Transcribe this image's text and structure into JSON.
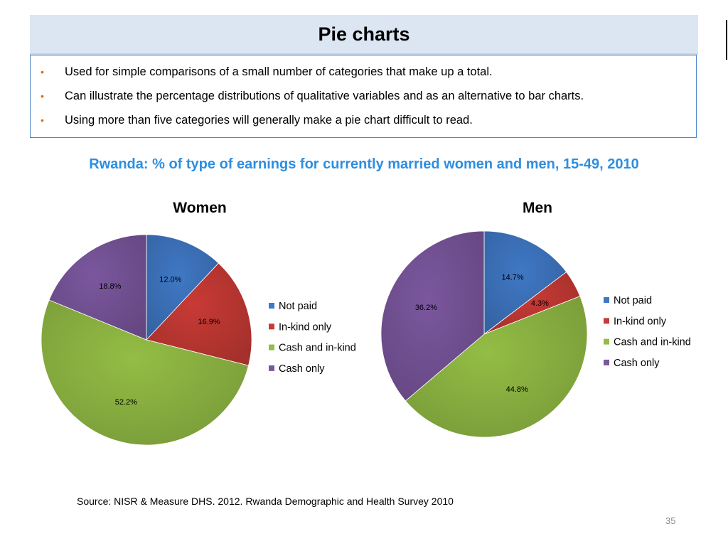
{
  "slide": {
    "title": "Pie charts",
    "bullets": [
      "Used for simple comparisons of a small number of categories that make up a total.",
      "Can illustrate the percentage distributions of qualitative variables and as an alternative to bar charts.",
      "Using more than five categories will generally make a pie chart  difficult to read."
    ],
    "subtitle": "Rwanda: % of type of earnings for currently married women and men, 15-49, 2010",
    "source": "Source: NISR & Measure DHS. 2012. Rwanda Demographic and Health Survey 2010",
    "page_number": "35"
  },
  "colors": {
    "not_paid": "#3f78c4",
    "in_kind_only": "#c83a35",
    "cash_and_in_kind": "#93bd45",
    "cash_only": "#7b579e",
    "bullet": "#e46c0a",
    "subtitle": "#2e8ee0"
  },
  "chart_data": [
    {
      "type": "pie",
      "title": "Women",
      "categories": [
        "Not paid",
        "In-kind only",
        "Cash and in-kind",
        "Cash only"
      ],
      "values": [
        12.0,
        16.9,
        52.2,
        18.8
      ],
      "labels": [
        "12.0%",
        "16.9%",
        "52.2%",
        "18.8%"
      ],
      "legend": "right"
    },
    {
      "type": "pie",
      "title": "Men",
      "categories": [
        "Not paid",
        "In-kind only",
        "Cash and in-kind",
        "Cash only"
      ],
      "values": [
        14.7,
        4.3,
        44.8,
        36.2
      ],
      "labels": [
        "14.7%",
        "4.3%",
        "44.8%",
        "36.2%"
      ],
      "legend": "right"
    }
  ]
}
